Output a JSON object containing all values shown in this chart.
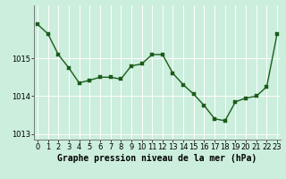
{
  "x": [
    0,
    1,
    2,
    3,
    4,
    5,
    6,
    7,
    8,
    9,
    10,
    11,
    12,
    13,
    14,
    15,
    16,
    17,
    18,
    19,
    20,
    21,
    22,
    23
  ],
  "y": [
    1015.9,
    1015.65,
    1015.1,
    1014.75,
    1014.35,
    1014.42,
    1014.5,
    1014.5,
    1014.45,
    1014.8,
    1014.85,
    1015.1,
    1015.1,
    1014.6,
    1014.3,
    1014.05,
    1013.75,
    1013.4,
    1013.35,
    1013.85,
    1013.95,
    1014.0,
    1014.25,
    1015.65
  ],
  "line_color": "#1a5c1a",
  "marker_color": "#1a5c1a",
  "bg_color": "#cceedd",
  "grid_color": "#ffffff",
  "red_line_color": "#ffaaaa",
  "xlabel": "Graphe pression niveau de la mer (hPa)",
  "ylim": [
    1012.85,
    1016.4
  ],
  "yticks": [
    1013,
    1014,
    1015
  ],
  "xlim": [
    -0.3,
    23.3
  ],
  "xticks": [
    0,
    1,
    2,
    3,
    4,
    5,
    6,
    7,
    8,
    9,
    10,
    11,
    12,
    13,
    14,
    15,
    16,
    17,
    18,
    19,
    20,
    21,
    22,
    23
  ],
  "xlabel_fontsize": 7.0,
  "tick_fontsize": 6.0,
  "line_width": 1.0,
  "marker_size": 2.5
}
